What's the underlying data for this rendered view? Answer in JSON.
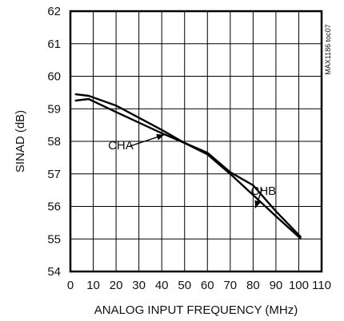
{
  "chart_data": {
    "type": "line",
    "xlabel": "ANALOG INPUT FREQUENCY (MHz)",
    "ylabel": "SINAD (dB)",
    "xlim": [
      0,
      110
    ],
    "ylim": [
      54,
      62
    ],
    "x_ticks": [
      0,
      10,
      20,
      30,
      40,
      50,
      60,
      70,
      80,
      90,
      100,
      110
    ],
    "y_ticks": [
      54,
      55,
      56,
      57,
      58,
      59,
      60,
      61,
      62
    ],
    "grid": true,
    "watermark": "MAX1186 toc07",
    "series": [
      {
        "name": "CHA",
        "x": [
          2,
          8,
          20,
          40,
          50,
          60,
          70,
          80,
          90,
          101
        ],
        "y": [
          59.25,
          59.3,
          58.9,
          58.25,
          57.95,
          57.6,
          57.0,
          56.35,
          55.7,
          55.0
        ]
      },
      {
        "name": "CHB",
        "x": [
          2,
          8,
          20,
          40,
          50,
          60,
          70,
          80,
          90,
          101
        ],
        "y": [
          59.45,
          59.4,
          59.1,
          58.35,
          57.95,
          57.65,
          57.05,
          56.65,
          55.85,
          55.05
        ]
      }
    ],
    "annotations": [
      {
        "text": "CHA",
        "series": "CHA"
      },
      {
        "text": "CHB",
        "series": "CHB"
      }
    ]
  }
}
